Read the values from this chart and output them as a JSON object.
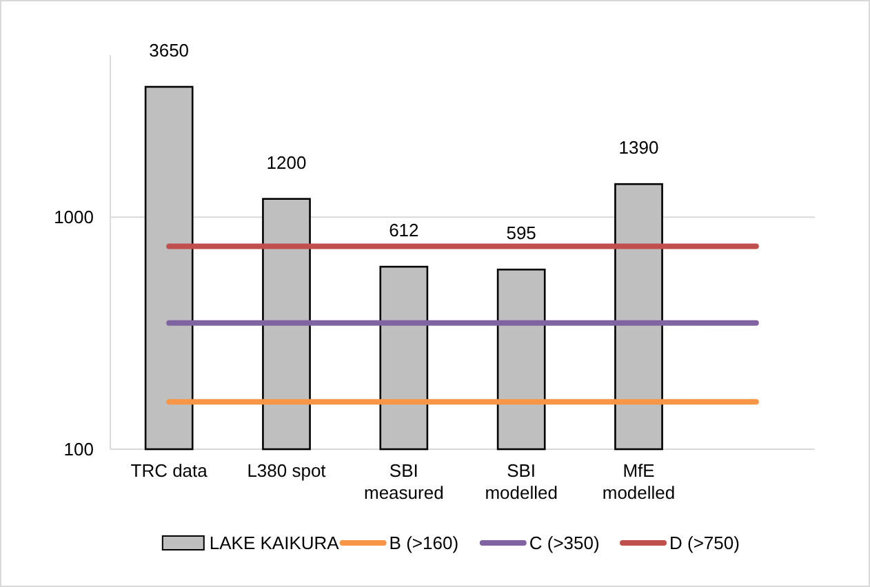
{
  "chart_data": {
    "type": "bar",
    "log": true,
    "categories": [
      "TRC data",
      "L380 spot",
      "SBI\nmeasured",
      "SBI\nmodelled",
      "MfE\nmodelled",
      null
    ],
    "series": [
      {
        "name": "LAKE KAIKURA",
        "color": "#bfbfbf",
        "values": [
          3650,
          1200,
          612,
          595,
          1390,
          null
        ],
        "value_labels": [
          "3650",
          "1200",
          "612",
          "595",
          "1390",
          null
        ]
      },
      {
        "name": "B (>160)",
        "type": "line",
        "color": "#f79646",
        "values": [
          160,
          160,
          160,
          160,
          160,
          160
        ]
      },
      {
        "name": "C (>350)",
        "type": "line",
        "color": "#8064a2",
        "values": [
          350,
          350,
          350,
          350,
          350,
          350
        ]
      },
      {
        "name": "D (>750)",
        "type": "line",
        "color": "#c0504d",
        "values": [
          750,
          750,
          750,
          750,
          750,
          750
        ]
      }
    ],
    "ylim": [
      100,
      5000
    ],
    "yticks": [
      100,
      1000
    ],
    "grid": "y",
    "legend": "bottom"
  }
}
